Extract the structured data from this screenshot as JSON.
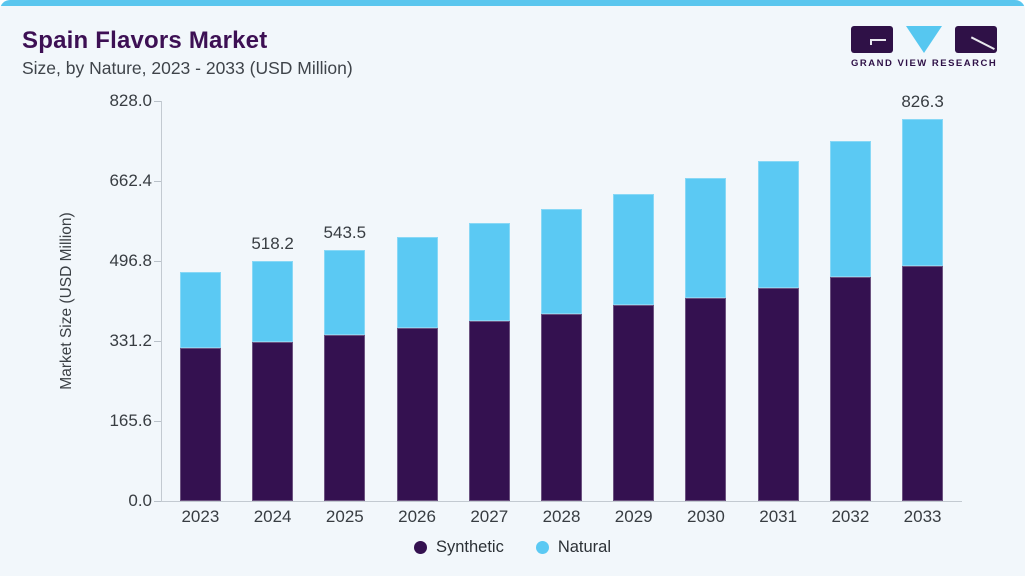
{
  "header": {
    "title": "Spain Flavors Market",
    "subtitle": "Size, by Nature, 2023 - 2033 (USD Million)",
    "logo_text": "GRAND VIEW RESEARCH"
  },
  "colors": {
    "accent_blue": "#5bc9f3",
    "dark_purple": "#341150",
    "title_purple": "#3d1054",
    "background": "#f2f7fb",
    "top_bar": "#5ac6ee",
    "axis_line": "#c3cad1",
    "text": "#383d42"
  },
  "chart_data": {
    "type": "bar",
    "stacked": true,
    "title": "Spain Flavors Market Size, by Nature, 2023 - 2033 (USD Million)",
    "categories": [
      "2023",
      "2024",
      "2025",
      "2026",
      "2027",
      "2028",
      "2029",
      "2030",
      "2031",
      "2032",
      "2033"
    ],
    "series": [
      {
        "name": "Synthetic",
        "color": "#341150",
        "values": [
          331.0,
          343.9,
          358.4,
          373.5,
          389.3,
          405.2,
          423.2,
          439.8,
          461.4,
          484.3,
          507.4
        ]
      },
      {
        "name": "Natural",
        "color": "#5bc9f3",
        "values": [
          163.3,
          174.3,
          185.1,
          198.0,
          212.4,
          226.7,
          241.8,
          258.2,
          274.8,
          295.1,
          318.9
        ]
      }
    ],
    "totals": [
      494.3,
      518.2,
      543.5,
      571.5,
      601.7,
      631.9,
      665.0,
      698.0,
      736.2,
      779.4,
      826.3
    ],
    "total_labels": [
      "",
      "518.2",
      "543.5",
      "",
      "",
      "",
      "",
      "",
      "",
      "",
      "826.3"
    ],
    "ylabel": "Market Size (USD Million)",
    "yticks": [
      "828.0",
      "662.4",
      "496.8",
      "331.2",
      "165.6",
      "0.0"
    ],
    "ylim": [
      0,
      828
    ],
    "grid": false,
    "legend": [
      "Synthetic",
      "Natural"
    ],
    "legend_position": "bottom"
  }
}
